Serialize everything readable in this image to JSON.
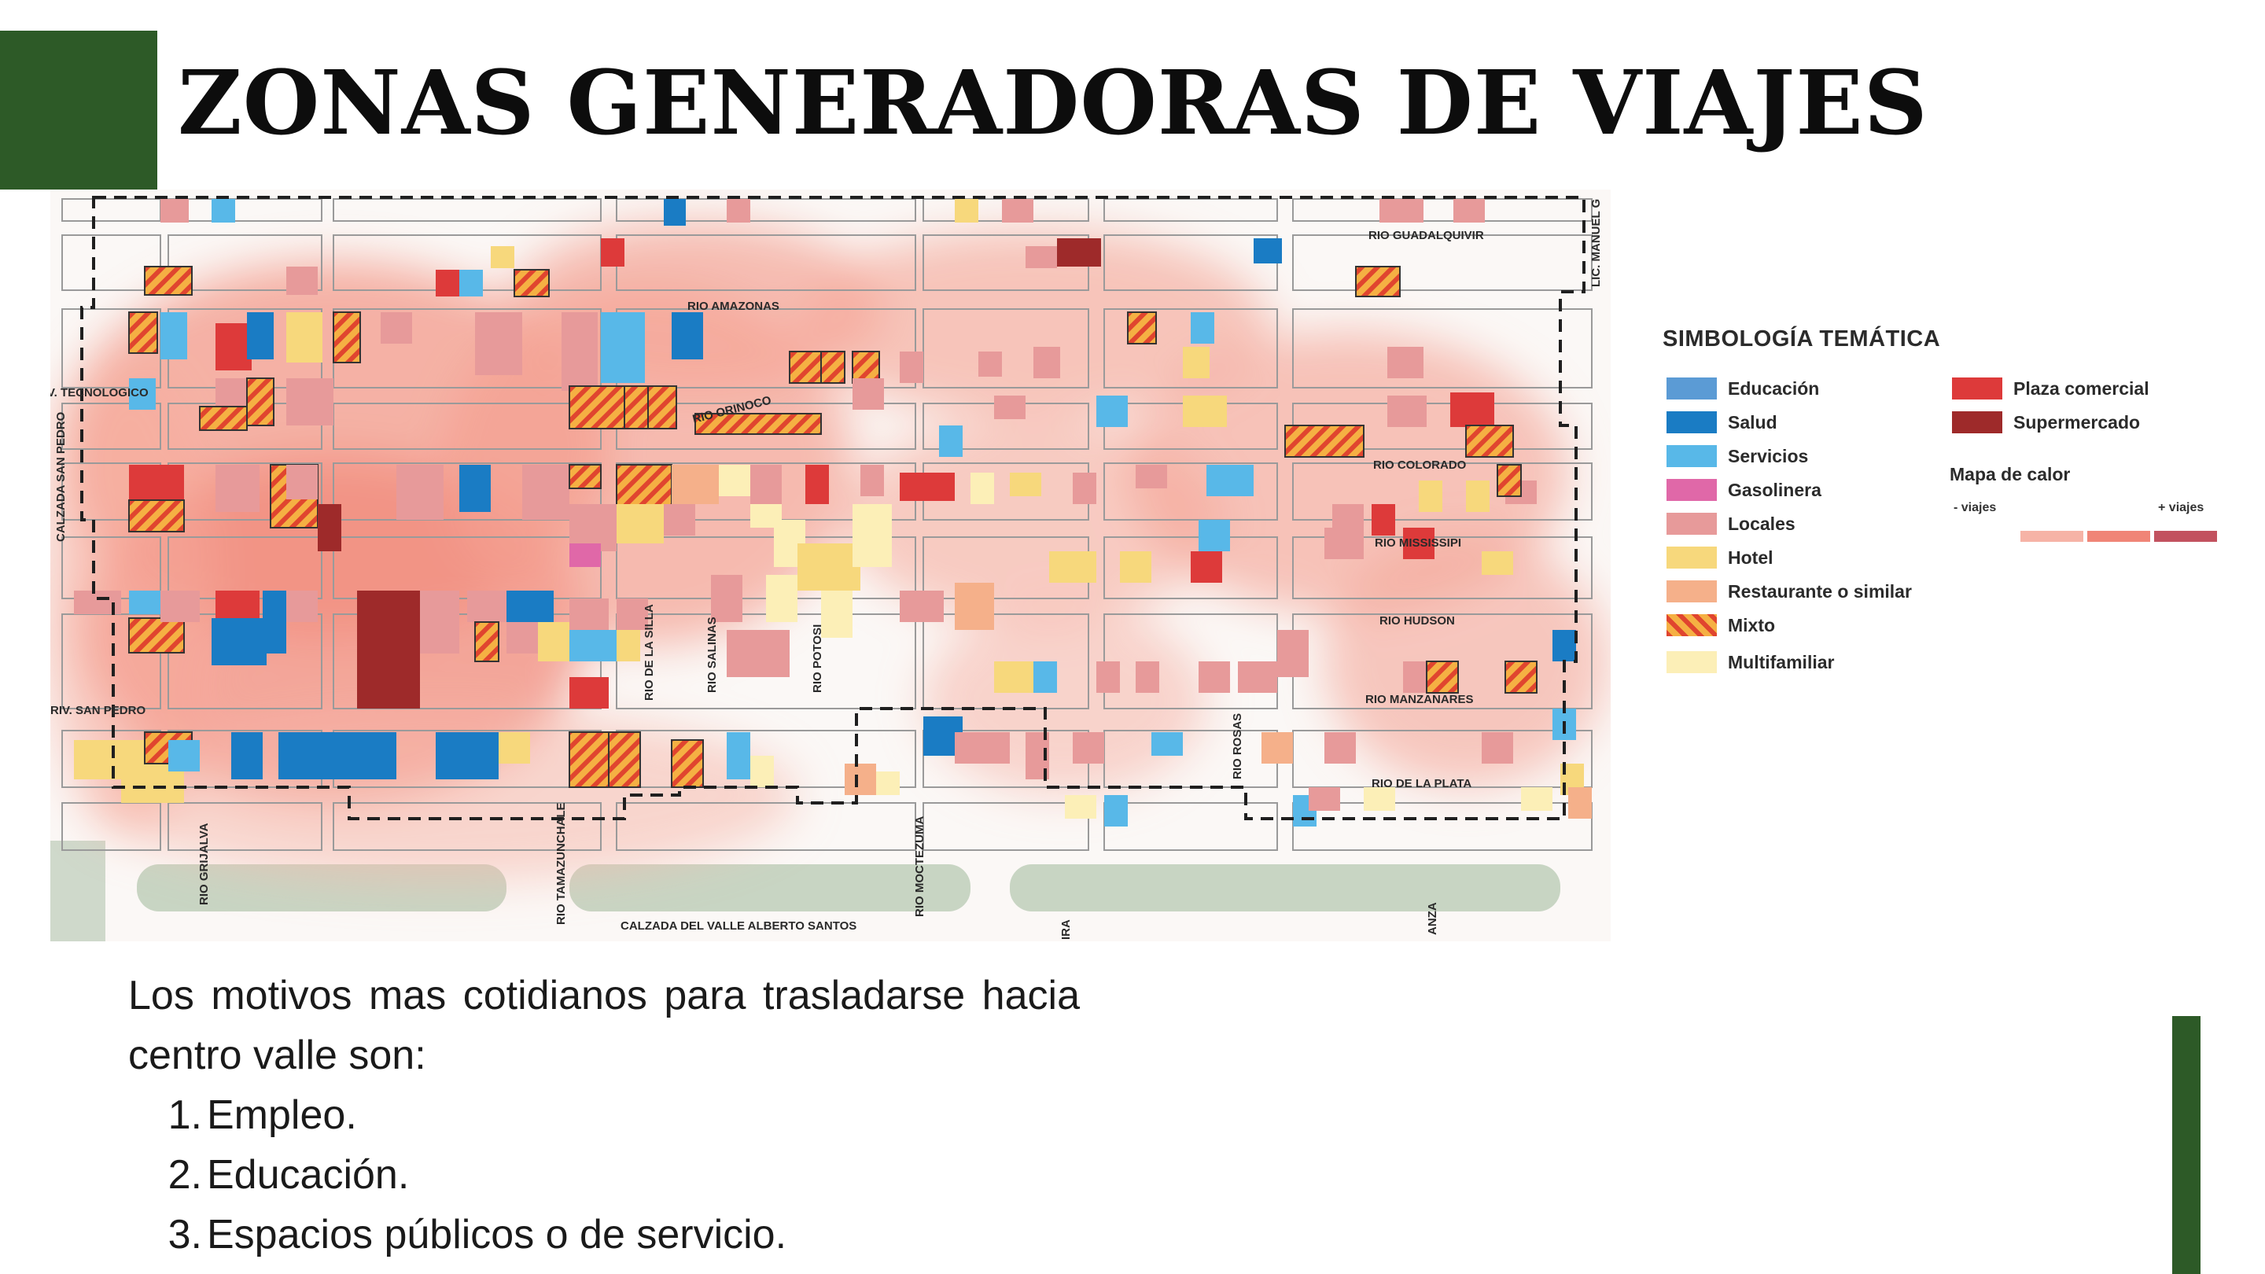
{
  "slide": {
    "title": "ZONAS GENERADORAS DE VIAJES",
    "accent_color": "#2d5a27"
  },
  "map": {
    "street_labels": [
      "RIO GUADALQUIVIR",
      "RIO AMAZONAS",
      "LIC. MANUEL G",
      "V. TECNOLOGICO",
      "RIO ORINOCO",
      "CALZADA SAN PEDRO",
      "RIO COLORADO",
      "RIO MISSISSIPI",
      "RIO HUDSON",
      "RIO DE LA SILLA",
      "RIO SALINAS",
      "RIO POTOSI",
      "RIV. SAN PEDRO",
      "RIO MANZANARES",
      "RIO ROSAS",
      "RIO DE LA PLATA",
      "RIO GRIJALVA",
      "RIO TAMAZUNCHALE",
      "RIO MOCTEZUMA",
      "CALZADA DEL VALLE ALBERTO SANTOS",
      "IRA",
      "ANZA"
    ]
  },
  "legend": {
    "title": "SIMBOLOGÍA TEMÁTICA",
    "items": [
      {
        "label": "Educación",
        "color": "#5b9bd5"
      },
      {
        "label": "Salud",
        "color": "#1a7cc4"
      },
      {
        "label": "Servicios",
        "color": "#58b8e8"
      },
      {
        "label": "Gasolinera",
        "color": "#e068a8"
      },
      {
        "label": "Locales",
        "color": "#e79a9a"
      },
      {
        "label": "Hotel",
        "color": "#f7d87c"
      },
      {
        "label": "Restaurante o similar",
        "color": "#f5b08a"
      },
      {
        "label": "Mixto",
        "color": "mixto-stripes"
      },
      {
        "label": "Multifamiliar",
        "color": "#fcefb7"
      },
      {
        "label": "Plaza comercial",
        "color": "#dd3a3a"
      },
      {
        "label": "Supermercado",
        "color": "#9e2a2a"
      }
    ],
    "heat_title": "Mapa de calor",
    "heat_min_label": "- viajes",
    "heat_max_label": "+ viajes",
    "heat_colors": [
      "#f6b3a6",
      "#f08577",
      "#c2525f"
    ]
  },
  "body": {
    "intro": "Los motivos mas cotidianos para trasladarse hacia centro valle son:",
    "reasons": [
      {
        "number": "1.",
        "text": "Empleo."
      },
      {
        "number": "2.",
        "text": " Educación."
      },
      {
        "number": "3.",
        "text": "Espacios públicos o de servicio."
      }
    ]
  }
}
